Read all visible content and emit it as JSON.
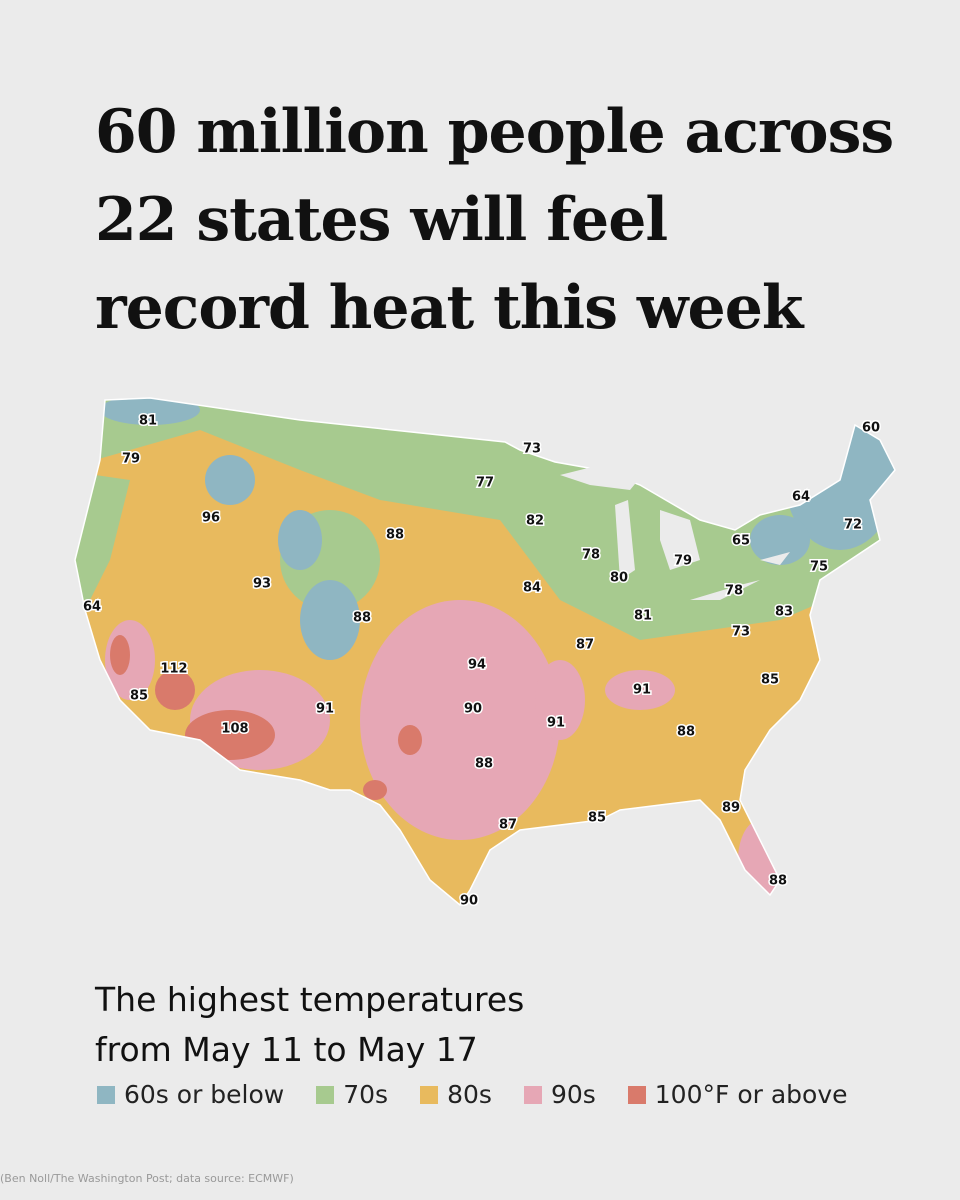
{
  "header": {
    "title_lines": [
      "60 million people across",
      "22 states will feel",
      "record heat this week"
    ]
  },
  "map": {
    "labels": [
      81,
      79,
      96,
      93,
      64,
      112,
      85,
      108,
      91,
      88,
      88,
      73,
      77,
      82,
      78,
      84,
      80,
      79,
      65,
      64,
      60,
      72,
      75,
      78,
      83,
      81,
      87,
      73,
      94,
      90,
      91,
      91,
      85,
      88,
      88,
      87,
      85,
      89,
      90,
      88
    ]
  },
  "caption": {
    "lines": [
      "The highest temperatures",
      "from May 11 to May 17"
    ]
  },
  "legend": [
    {
      "label": "60s or below",
      "color": "#8fb6c2"
    },
    {
      "label": "70s",
      "color": "#a7ca8f"
    },
    {
      "label": "80s",
      "color": "#e8ba5e"
    },
    {
      "label": "90s",
      "color": "#e6a7b5"
    },
    {
      "label": "100°F or above",
      "color": "#d97a6b"
    }
  ],
  "source": "(Ben Noll/The Washington Post; data source: ECMWF)"
}
